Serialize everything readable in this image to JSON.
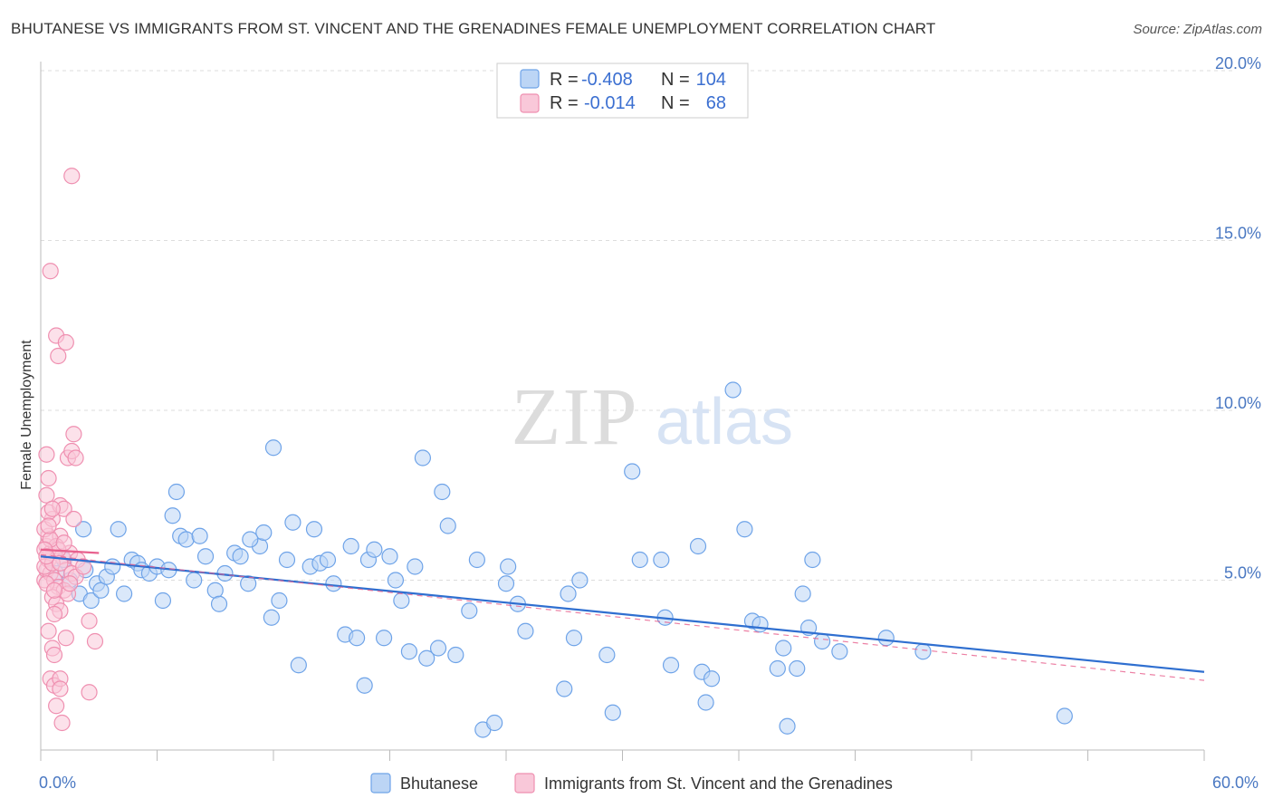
{
  "title": "BHUTANESE VS IMMIGRANTS FROM ST. VINCENT AND THE GRENADINES FEMALE UNEMPLOYMENT CORRELATION CHART",
  "source": "Source: ZipAtlas.com",
  "watermark": {
    "zip": "ZIP",
    "atlas": "atlas"
  },
  "colors": {
    "blue": "#6ea3e8",
    "blue_fill": "#bcd5f5",
    "blue_line": "#2f6fd0",
    "pink": "#ef8fb0",
    "pink_fill": "#f9c8d9",
    "pink_line": "#e8618e",
    "tick_text": "#4a78c2",
    "grid": "#dddddd"
  },
  "legend": {
    "rows": [
      {
        "r_label": "R =",
        "r_value": "-0.408",
        "n_label": "N =",
        "n_value": "104"
      },
      {
        "r_label": "R =",
        "r_value": "-0.014",
        "n_label": "N =",
        "n_value": "68"
      }
    ]
  },
  "chart_data": {
    "type": "scatter",
    "title": "BHUTANESE VS IMMIGRANTS FROM ST. VINCENT AND THE GRENADINES FEMALE UNEMPLOYMENT CORRELATION CHART",
    "xlabel": "",
    "ylabel": "Female Unemployment",
    "xlim": [
      0,
      60
    ],
    "ylim": [
      0,
      20
    ],
    "x_ticks": [
      0,
      6,
      12,
      18,
      24,
      30,
      36,
      42,
      48,
      54,
      60
    ],
    "x_tick_labels": [
      {
        "value": 0,
        "label": "0.0%"
      },
      {
        "value": 60,
        "label": "60.0%"
      }
    ],
    "y_tick_labels": [
      {
        "value": 5,
        "label": "5.0%"
      },
      {
        "value": 10,
        "label": "10.0%"
      },
      {
        "value": 15,
        "label": "15.0%"
      },
      {
        "value": 20,
        "label": "20.0%"
      }
    ],
    "grid": true,
    "legend_position": "top-center",
    "series": [
      {
        "name": "Bhutanese",
        "color": "blue",
        "r": -0.408,
        "n": 104,
        "trend": {
          "x": [
            0,
            60
          ],
          "y": [
            5.7,
            2.3
          ]
        },
        "points": [
          [
            0.8,
            5.2
          ],
          [
            1.2,
            5.6
          ],
          [
            1.5,
            5.0
          ],
          [
            2.0,
            4.6
          ],
          [
            2.3,
            5.3
          ],
          [
            2.6,
            4.4
          ],
          [
            2.9,
            4.9
          ],
          [
            3.1,
            4.7
          ],
          [
            3.4,
            5.1
          ],
          [
            3.7,
            5.4
          ],
          [
            4.0,
            6.5
          ],
          [
            4.3,
            4.6
          ],
          [
            4.7,
            5.6
          ],
          [
            5.0,
            5.5
          ],
          [
            5.2,
            5.3
          ],
          [
            5.6,
            5.2
          ],
          [
            6.0,
            5.4
          ],
          [
            6.3,
            4.4
          ],
          [
            6.6,
            5.3
          ],
          [
            7.0,
            7.6
          ],
          [
            7.2,
            6.3
          ],
          [
            7.5,
            6.2
          ],
          [
            7.9,
            5.0
          ],
          [
            8.2,
            6.3
          ],
          [
            8.5,
            5.7
          ],
          [
            9.0,
            4.7
          ],
          [
            9.2,
            4.3
          ],
          [
            9.5,
            5.2
          ],
          [
            10.0,
            5.8
          ],
          [
            10.3,
            5.7
          ],
          [
            10.7,
            4.9
          ],
          [
            11.3,
            6.0
          ],
          [
            11.5,
            6.4
          ],
          [
            11.9,
            3.9
          ],
          [
            12.0,
            8.9
          ],
          [
            12.3,
            4.4
          ],
          [
            12.7,
            5.6
          ],
          [
            13.0,
            6.7
          ],
          [
            13.3,
            2.5
          ],
          [
            13.9,
            5.4
          ],
          [
            14.1,
            6.5
          ],
          [
            14.4,
            5.5
          ],
          [
            14.8,
            5.6
          ],
          [
            15.1,
            4.9
          ],
          [
            15.7,
            3.4
          ],
          [
            16.0,
            6.0
          ],
          [
            16.3,
            3.3
          ],
          [
            16.7,
            1.9
          ],
          [
            16.9,
            5.6
          ],
          [
            17.2,
            5.9
          ],
          [
            17.7,
            3.3
          ],
          [
            18.0,
            5.7
          ],
          [
            18.3,
            5.0
          ],
          [
            18.6,
            4.4
          ],
          [
            19.0,
            2.9
          ],
          [
            19.3,
            5.4
          ],
          [
            19.7,
            8.6
          ],
          [
            19.9,
            2.7
          ],
          [
            20.5,
            3.0
          ],
          [
            20.7,
            7.6
          ],
          [
            21.0,
            6.6
          ],
          [
            21.4,
            2.8
          ],
          [
            22.1,
            4.1
          ],
          [
            22.5,
            5.6
          ],
          [
            22.8,
            0.6
          ],
          [
            23.4,
            0.8
          ],
          [
            24.0,
            4.9
          ],
          [
            24.1,
            5.4
          ],
          [
            24.6,
            4.3
          ],
          [
            25.0,
            3.5
          ],
          [
            27.0,
            1.8
          ],
          [
            27.2,
            4.6
          ],
          [
            27.5,
            3.3
          ],
          [
            27.8,
            5.0
          ],
          [
            29.2,
            2.8
          ],
          [
            29.5,
            1.1
          ],
          [
            30.5,
            8.2
          ],
          [
            30.9,
            5.6
          ],
          [
            32.0,
            5.6
          ],
          [
            32.2,
            3.9
          ],
          [
            32.5,
            2.5
          ],
          [
            33.9,
            6.0
          ],
          [
            34.1,
            2.3
          ],
          [
            34.3,
            1.4
          ],
          [
            34.6,
            2.1
          ],
          [
            35.7,
            10.6
          ],
          [
            36.3,
            6.5
          ],
          [
            36.7,
            3.8
          ],
          [
            37.1,
            3.7
          ],
          [
            38.0,
            2.4
          ],
          [
            38.3,
            3.0
          ],
          [
            38.5,
            0.7
          ],
          [
            39.0,
            2.4
          ],
          [
            39.3,
            4.6
          ],
          [
            39.6,
            3.6
          ],
          [
            39.8,
            5.6
          ],
          [
            40.3,
            3.2
          ],
          [
            41.2,
            2.9
          ],
          [
            43.6,
            3.3
          ],
          [
            45.5,
            2.9
          ],
          [
            52.8,
            1.0
          ],
          [
            2.2,
            6.5
          ],
          [
            6.8,
            6.9
          ],
          [
            10.8,
            6.2
          ]
        ]
      },
      {
        "name": "Immigrants from St. Vincent and the Grenadines",
        "color": "pink",
        "r": -0.014,
        "n": 68,
        "trend": {
          "x": [
            0,
            3.0
          ],
          "y": [
            5.9,
            5.8
          ]
        },
        "points": [
          [
            0.2,
            5.0
          ],
          [
            0.3,
            5.3
          ],
          [
            0.4,
            5.6
          ],
          [
            0.5,
            5.2
          ],
          [
            0.3,
            6.0
          ],
          [
            0.4,
            6.3
          ],
          [
            0.5,
            5.8
          ],
          [
            0.2,
            6.5
          ],
          [
            0.6,
            6.8
          ],
          [
            0.4,
            7.0
          ],
          [
            0.3,
            7.5
          ],
          [
            0.4,
            8.0
          ],
          [
            0.3,
            8.7
          ],
          [
            0.5,
            14.1
          ],
          [
            1.6,
            16.9
          ],
          [
            0.8,
            12.2
          ],
          [
            0.9,
            11.6
          ],
          [
            1.3,
            12.0
          ],
          [
            1.4,
            8.6
          ],
          [
            1.6,
            8.8
          ],
          [
            1.7,
            9.3
          ],
          [
            1.8,
            8.6
          ],
          [
            1.0,
            7.2
          ],
          [
            1.2,
            7.1
          ],
          [
            1.7,
            6.8
          ],
          [
            1.0,
            6.3
          ],
          [
            0.8,
            6.0
          ],
          [
            1.1,
            5.7
          ],
          [
            1.5,
            5.8
          ],
          [
            1.9,
            5.6
          ],
          [
            1.3,
            5.3
          ],
          [
            1.6,
            5.2
          ],
          [
            0.7,
            5.0
          ],
          [
            0.9,
            4.8
          ],
          [
            1.2,
            4.7
          ],
          [
            1.4,
            4.6
          ],
          [
            0.6,
            4.5
          ],
          [
            0.8,
            4.3
          ],
          [
            1.0,
            4.1
          ],
          [
            0.7,
            4.0
          ],
          [
            2.5,
            3.8
          ],
          [
            1.3,
            3.3
          ],
          [
            2.8,
            3.2
          ],
          [
            0.4,
            3.5
          ],
          [
            0.6,
            3.0
          ],
          [
            0.7,
            2.8
          ],
          [
            0.5,
            2.1
          ],
          [
            0.7,
            1.9
          ],
          [
            1.0,
            2.1
          ],
          [
            1.0,
            1.8
          ],
          [
            2.5,
            1.7
          ],
          [
            0.8,
            1.3
          ],
          [
            1.1,
            0.8
          ],
          [
            0.2,
            5.4
          ],
          [
            0.3,
            4.9
          ],
          [
            0.6,
            5.5
          ],
          [
            0.9,
            5.9
          ],
          [
            0.5,
            6.2
          ],
          [
            1.2,
            6.1
          ],
          [
            0.4,
            6.6
          ],
          [
            0.6,
            7.1
          ],
          [
            1.8,
            5.1
          ],
          [
            2.2,
            5.4
          ],
          [
            0.7,
            4.7
          ],
          [
            1.5,
            4.9
          ],
          [
            0.2,
            5.9
          ],
          [
            1.0,
            5.5
          ],
          [
            0.3,
            5.7
          ]
        ]
      }
    ]
  }
}
